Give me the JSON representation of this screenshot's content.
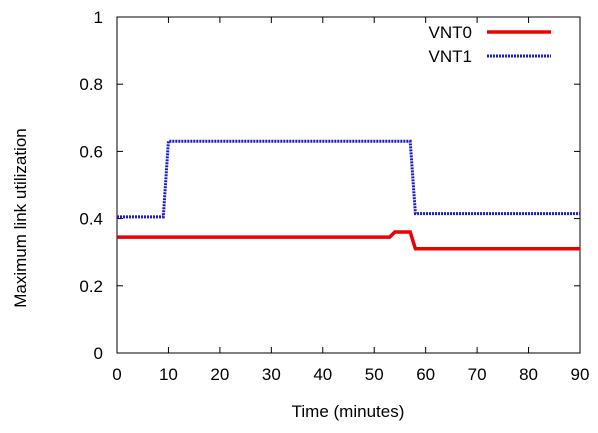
{
  "chart_data": {
    "type": "line",
    "title": "",
    "xlabel": "Time (minutes)",
    "ylabel": "Maximum link utilization",
    "xlim": [
      0,
      90
    ],
    "ylim": [
      0,
      1
    ],
    "xticks": [
      "0",
      "10",
      "20",
      "30",
      "40",
      "50",
      "60",
      "70",
      "80",
      "90"
    ],
    "yticks": [
      "0",
      "0.2",
      "0.4",
      "0.6",
      "0.8",
      "1"
    ],
    "grid": false,
    "legend_position": "top-right",
    "series": [
      {
        "name": "VNT0",
        "color": "#ee0000",
        "style": "solid",
        "points": [
          [
            0,
            0.345
          ],
          [
            53,
            0.345
          ],
          [
            54,
            0.36
          ],
          [
            57,
            0.36
          ],
          [
            58,
            0.31
          ],
          [
            90,
            0.31
          ]
        ]
      },
      {
        "name": "VNT1",
        "color": "#1a1acc",
        "style": "dotted",
        "points": [
          [
            0,
            0.405
          ],
          [
            9,
            0.405
          ],
          [
            10,
            0.63
          ],
          [
            57,
            0.63
          ],
          [
            58,
            0.415
          ],
          [
            90,
            0.415
          ]
        ]
      }
    ]
  }
}
